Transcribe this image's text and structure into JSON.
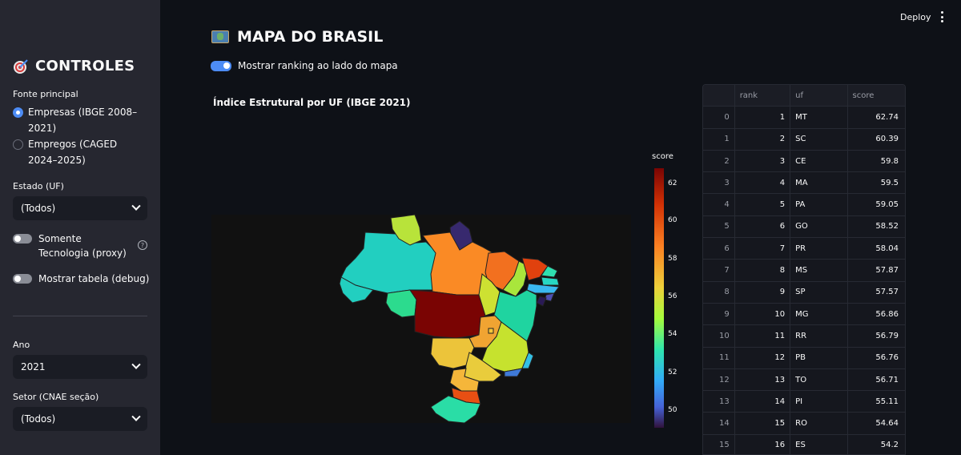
{
  "header": {
    "deploy_label": "Deploy"
  },
  "sidebar": {
    "title": "CONTROLES",
    "source_label": "Fonte principal",
    "source_options": [
      "Empresas (IBGE 2008–2021)",
      "Empregos (CAGED 2024–2025)"
    ],
    "state_label": "Estado (UF)",
    "state_value": "(Todos)",
    "tech_toggle_label": "Somente Tecnologia (proxy)",
    "tech_help": "?",
    "debug_toggle_label": "Mostrar tabela (debug)",
    "year_label": "Ano",
    "year_value": "2021",
    "sector_label": "Setor (CNAE seção)",
    "sector_value": "(Todos)"
  },
  "main": {
    "title": "MAPA DO BRASIL",
    "ranking_toggle_label": "Mostrar ranking ao lado do mapa",
    "map_title": "Índice Estrutural por UF (IBGE 2021)",
    "colorbar": {
      "title": "score",
      "ticks": [
        "62",
        "60",
        "58",
        "56",
        "54",
        "52",
        "50"
      ]
    }
  },
  "table": {
    "columns": [
      "",
      "rank",
      "uf",
      "score"
    ],
    "rows": [
      {
        "idx": "0",
        "rank": "1",
        "uf": "MT",
        "score": "62.74"
      },
      {
        "idx": "1",
        "rank": "2",
        "uf": "SC",
        "score": "60.39"
      },
      {
        "idx": "2",
        "rank": "3",
        "uf": "CE",
        "score": "59.8"
      },
      {
        "idx": "3",
        "rank": "4",
        "uf": "MA",
        "score": "59.5"
      },
      {
        "idx": "4",
        "rank": "5",
        "uf": "PA",
        "score": "59.05"
      },
      {
        "idx": "5",
        "rank": "6",
        "uf": "GO",
        "score": "58.52"
      },
      {
        "idx": "6",
        "rank": "7",
        "uf": "PR",
        "score": "58.04"
      },
      {
        "idx": "7",
        "rank": "8",
        "uf": "MS",
        "score": "57.87"
      },
      {
        "idx": "8",
        "rank": "9",
        "uf": "SP",
        "score": "57.57"
      },
      {
        "idx": "9",
        "rank": "10",
        "uf": "MG",
        "score": "56.86"
      },
      {
        "idx": "10",
        "rank": "11",
        "uf": "RR",
        "score": "56.79"
      },
      {
        "idx": "11",
        "rank": "12",
        "uf": "PB",
        "score": "56.76"
      },
      {
        "idx": "12",
        "rank": "13",
        "uf": "TO",
        "score": "56.71"
      },
      {
        "idx": "13",
        "rank": "14",
        "uf": "PI",
        "score": "55.11"
      },
      {
        "idx": "14",
        "rank": "15",
        "uf": "RO",
        "score": "54.64"
      },
      {
        "idx": "15",
        "rank": "16",
        "uf": "ES",
        "score": "54.2"
      }
    ]
  },
  "colors": {
    "accent": "#4d8cf5",
    "sidebar_bg": "#262730",
    "app_bg": "#0e1117"
  },
  "icons": {
    "title_icon": "target-icon",
    "main_title_icon": "world-map-icon"
  }
}
